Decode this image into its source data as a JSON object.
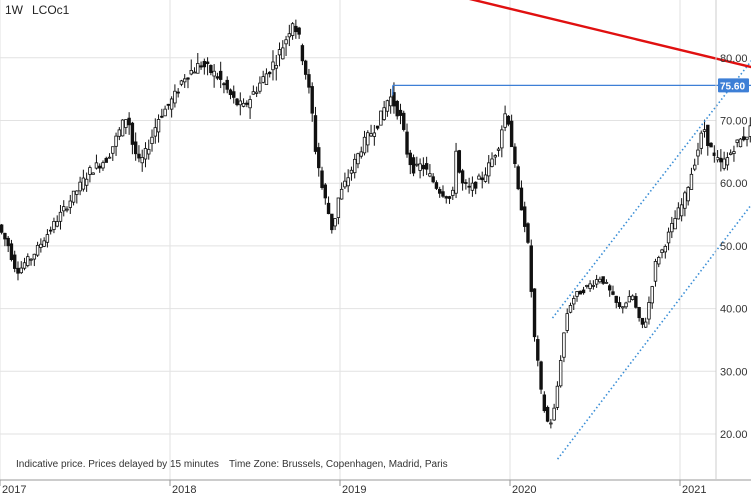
{
  "header": {
    "timeframe": "1W",
    "symbol": "LCOc1"
  },
  "footer": {
    "disclaimer": "Indicative price. Prices delayed by 15 minutes",
    "timezone": "Time Zone: Brussels, Copenhagen, Madrid, Paris"
  },
  "colors": {
    "background": "#ffffff",
    "grid": "#e2e2e2",
    "candle": "#111111",
    "trendline": "#e01010",
    "level_line": "#3d7fd6",
    "channel": "#3a8ed6",
    "badge": "#3d7fd6"
  },
  "chart_data": {
    "type": "candlestick",
    "x_unit": "decimal year",
    "x_range": [
      2017.0,
      2021.62
    ],
    "ylim": [
      14,
      90
    ],
    "y_ticks": [
      "20.00",
      "30.00",
      "40.00",
      "50.00",
      "60.00",
      "70.00",
      "80.00"
    ],
    "x_ticks": [
      {
        "x": 2017,
        "label": "2017"
      },
      {
        "x": 2018,
        "label": "2018"
      },
      {
        "x": 2019,
        "label": "2019"
      },
      {
        "x": 2020,
        "label": "2020"
      },
      {
        "x": 2021,
        "label": "2021"
      }
    ],
    "price_badge": {
      "value": 75.6,
      "label": "75.60"
    },
    "grid": true,
    "price_path": [
      [
        2017.0,
        54
      ],
      [
        2017.03,
        52
      ],
      [
        2017.07,
        50
      ],
      [
        2017.1,
        47
      ],
      [
        2017.13,
        46
      ],
      [
        2017.17,
        47.5
      ],
      [
        2017.2,
        48
      ],
      [
        2017.25,
        50
      ],
      [
        2017.3,
        52
      ],
      [
        2017.35,
        54
      ],
      [
        2017.4,
        56
      ],
      [
        2017.45,
        58
      ],
      [
        2017.5,
        60
      ],
      [
        2017.55,
        62
      ],
      [
        2017.6,
        63
      ],
      [
        2017.65,
        64
      ],
      [
        2017.7,
        67
      ],
      [
        2017.75,
        70
      ],
      [
        2017.77,
        71
      ],
      [
        2017.8,
        66
      ],
      [
        2017.84,
        63
      ],
      [
        2017.88,
        65
      ],
      [
        2017.92,
        68
      ],
      [
        2017.96,
        71
      ],
      [
        2018.0,
        72
      ],
      [
        2018.05,
        74
      ],
      [
        2018.1,
        77
      ],
      [
        2018.15,
        78
      ],
      [
        2018.2,
        79
      ],
      [
        2018.25,
        78
      ],
      [
        2018.3,
        77
      ],
      [
        2018.35,
        75
      ],
      [
        2018.4,
        73
      ],
      [
        2018.45,
        72
      ],
      [
        2018.5,
        74
      ],
      [
        2018.55,
        76
      ],
      [
        2018.6,
        78
      ],
      [
        2018.65,
        80
      ],
      [
        2018.7,
        83
      ],
      [
        2018.74,
        86
      ],
      [
        2018.77,
        84
      ],
      [
        2018.8,
        80
      ],
      [
        2018.83,
        76
      ],
      [
        2018.86,
        70
      ],
      [
        2018.88,
        64
      ],
      [
        2018.9,
        62
      ],
      [
        2018.92,
        58
      ],
      [
        2018.94,
        57
      ],
      [
        2018.96,
        54
      ],
      [
        2018.98,
        52
      ],
      [
        2019.0,
        57
      ],
      [
        2019.05,
        60
      ],
      [
        2019.1,
        63
      ],
      [
        2019.15,
        66
      ],
      [
        2019.2,
        68
      ],
      [
        2019.25,
        70
      ],
      [
        2019.28,
        72
      ],
      [
        2019.31,
        74
      ],
      [
        2019.35,
        72
      ],
      [
        2019.38,
        70
      ],
      [
        2019.42,
        64
      ],
      [
        2019.46,
        62
      ],
      [
        2019.5,
        63
      ],
      [
        2019.55,
        61
      ],
      [
        2019.6,
        59
      ],
      [
        2019.65,
        58
      ],
      [
        2019.68,
        57
      ],
      [
        2019.7,
        66
      ],
      [
        2019.73,
        60
      ],
      [
        2019.78,
        59
      ],
      [
        2019.82,
        60
      ],
      [
        2019.86,
        61
      ],
      [
        2019.9,
        63
      ],
      [
        2019.95,
        66
      ],
      [
        2019.98,
        70
      ],
      [
        2020.0,
        72
      ],
      [
        2020.02,
        68
      ],
      [
        2020.05,
        62
      ],
      [
        2020.07,
        58
      ],
      [
        2020.09,
        56
      ],
      [
        2020.11,
        53
      ],
      [
        2020.13,
        49
      ],
      [
        2020.16,
        36
      ],
      [
        2020.18,
        32
      ],
      [
        2020.2,
        27
      ],
      [
        2020.22,
        24
      ],
      [
        2020.25,
        21
      ],
      [
        2020.28,
        24
      ],
      [
        2020.3,
        28
      ],
      [
        2020.33,
        35
      ],
      [
        2020.36,
        40
      ],
      [
        2020.4,
        42
      ],
      [
        2020.45,
        43
      ],
      [
        2020.5,
        44
      ],
      [
        2020.55,
        45
      ],
      [
        2020.58,
        44
      ],
      [
        2020.62,
        42
      ],
      [
        2020.66,
        40
      ],
      [
        2020.7,
        41
      ],
      [
        2020.74,
        42
      ],
      [
        2020.78,
        38
      ],
      [
        2020.81,
        37
      ],
      [
        2020.85,
        43
      ],
      [
        2020.88,
        48
      ],
      [
        2020.91,
        49
      ],
      [
        2020.94,
        51
      ],
      [
        2020.97,
        53
      ],
      [
        2021.0,
        55
      ],
      [
        2021.04,
        57
      ],
      [
        2021.08,
        61
      ],
      [
        2021.12,
        65
      ],
      [
        2021.16,
        69
      ],
      [
        2021.18,
        67
      ],
      [
        2021.22,
        64
      ],
      [
        2021.26,
        63
      ],
      [
        2021.3,
        64
      ],
      [
        2021.34,
        66
      ],
      [
        2021.38,
        67
      ],
      [
        2021.42,
        68
      ],
      [
        2021.46,
        70
      ],
      [
        2021.5,
        72
      ],
      [
        2021.52,
        73
      ],
      [
        2021.545,
        74
      ]
    ],
    "lines": {
      "resistance_trend": {
        "from": [
          2018.45,
          98
        ],
        "to": [
          2021.62,
          77.2
        ]
      },
      "horizontal_level": {
        "from": [
          2019.31,
          75.6
        ],
        "to": [
          2021.62,
          75.6
        ]
      },
      "channel_upper": {
        "from": [
          2020.25,
          38.5
        ],
        "to": [
          2021.59,
          85.5
        ]
      },
      "channel_lower": {
        "from": [
          2020.28,
          16
        ],
        "to": [
          2021.6,
          63
        ]
      }
    }
  }
}
